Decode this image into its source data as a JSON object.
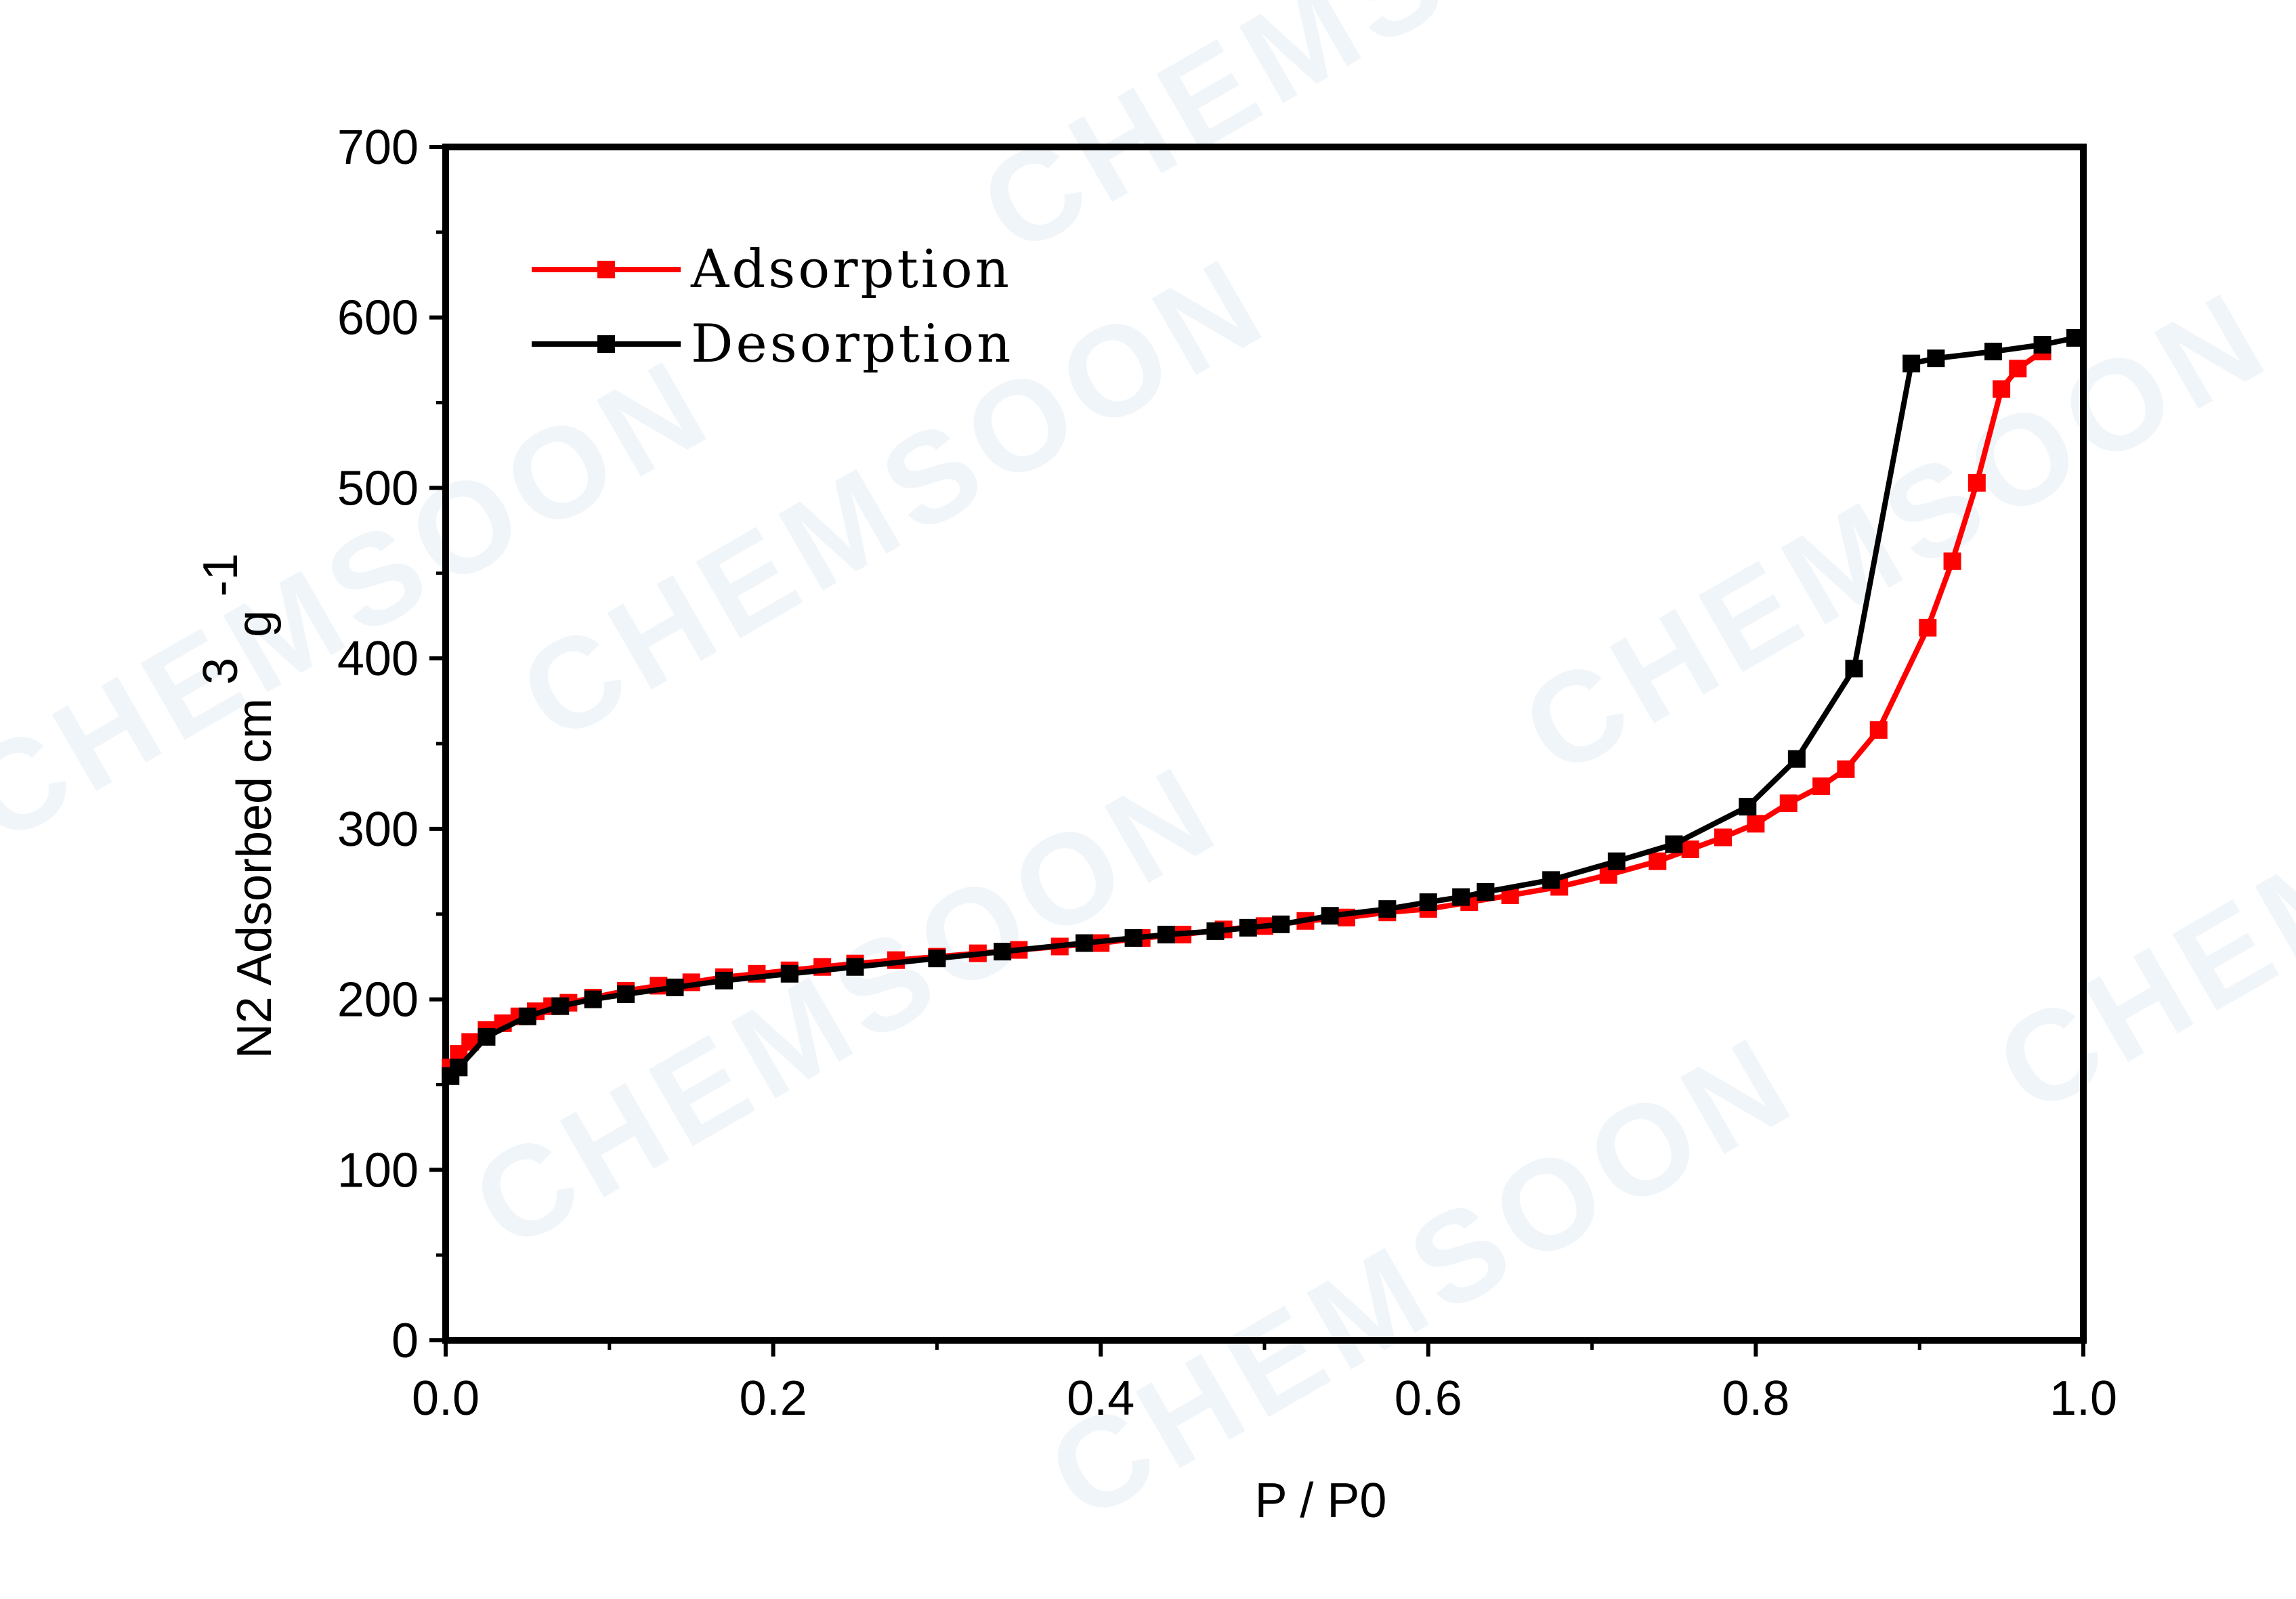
{
  "watermark": "CHEMSOON",
  "chart_data": {
    "type": "line",
    "title": "",
    "xlabel": "P / P0",
    "ylabel_main": "N2 Adsorbed cm",
    "ylabel_sup": "3",
    "ylabel_unit": "g",
    "ylabel_sup2": "-1",
    "xlim": [
      0.0,
      1.0
    ],
    "ylim": [
      0,
      700
    ],
    "xticks": [
      "0.0",
      "0.2",
      "0.4",
      "0.6",
      "0.8",
      "1.0"
    ],
    "yticks": [
      "0",
      "100",
      "200",
      "300",
      "400",
      "500",
      "600",
      "700"
    ],
    "xtick_values": [
      0.0,
      0.2,
      0.4,
      0.6,
      0.8,
      1.0
    ],
    "ytick_values": [
      0,
      100,
      200,
      300,
      400,
      500,
      600,
      700
    ],
    "grid": false,
    "legend_position": "top-left",
    "series": [
      {
        "name": "Adsorption",
        "color": "#ff0000",
        "marker": "square",
        "x": [
          0.003,
          0.008,
          0.015,
          0.025,
          0.035,
          0.045,
          0.055,
          0.065,
          0.075,
          0.09,
          0.11,
          0.13,
          0.15,
          0.17,
          0.19,
          0.21,
          0.23,
          0.25,
          0.275,
          0.3,
          0.325,
          0.35,
          0.375,
          0.4,
          0.425,
          0.45,
          0.475,
          0.5,
          0.525,
          0.55,
          0.575,
          0.6,
          0.625,
          0.65,
          0.68,
          0.71,
          0.74,
          0.76,
          0.78,
          0.8,
          0.82,
          0.84,
          0.855,
          0.875,
          0.905,
          0.92,
          0.935,
          0.95,
          0.96,
          0.975
        ],
        "y": [
          160,
          168,
          175,
          182,
          186,
          190,
          193,
          196,
          198,
          201,
          205,
          208,
          210,
          213,
          215,
          217,
          219,
          221,
          223,
          225,
          227,
          229,
          231,
          233,
          236,
          238,
          241,
          243,
          246,
          248,
          251,
          253,
          257,
          261,
          266,
          273,
          281,
          288,
          295,
          303,
          315,
          325,
          335,
          358,
          418,
          457,
          503,
          558,
          570,
          580
        ]
      },
      {
        "name": "Desorption",
        "color": "#000000",
        "marker": "square",
        "x": [
          0.003,
          0.008,
          0.025,
          0.05,
          0.07,
          0.09,
          0.11,
          0.14,
          0.17,
          0.21,
          0.25,
          0.3,
          0.34,
          0.39,
          0.42,
          0.44,
          0.47,
          0.49,
          0.51,
          0.54,
          0.575,
          0.6,
          0.62,
          0.635,
          0.675,
          0.715,
          0.75,
          0.795,
          0.825,
          0.86,
          0.895,
          0.91,
          0.945,
          0.975,
          0.995
        ],
        "y": [
          155,
          160,
          178,
          190,
          196,
          200,
          203,
          207,
          211,
          215,
          219,
          224,
          228,
          233,
          236,
          238,
          240,
          242,
          244,
          249,
          253,
          257,
          260,
          263,
          270,
          281,
          291,
          313,
          341,
          394,
          573,
          576,
          580,
          584,
          588
        ]
      }
    ]
  }
}
